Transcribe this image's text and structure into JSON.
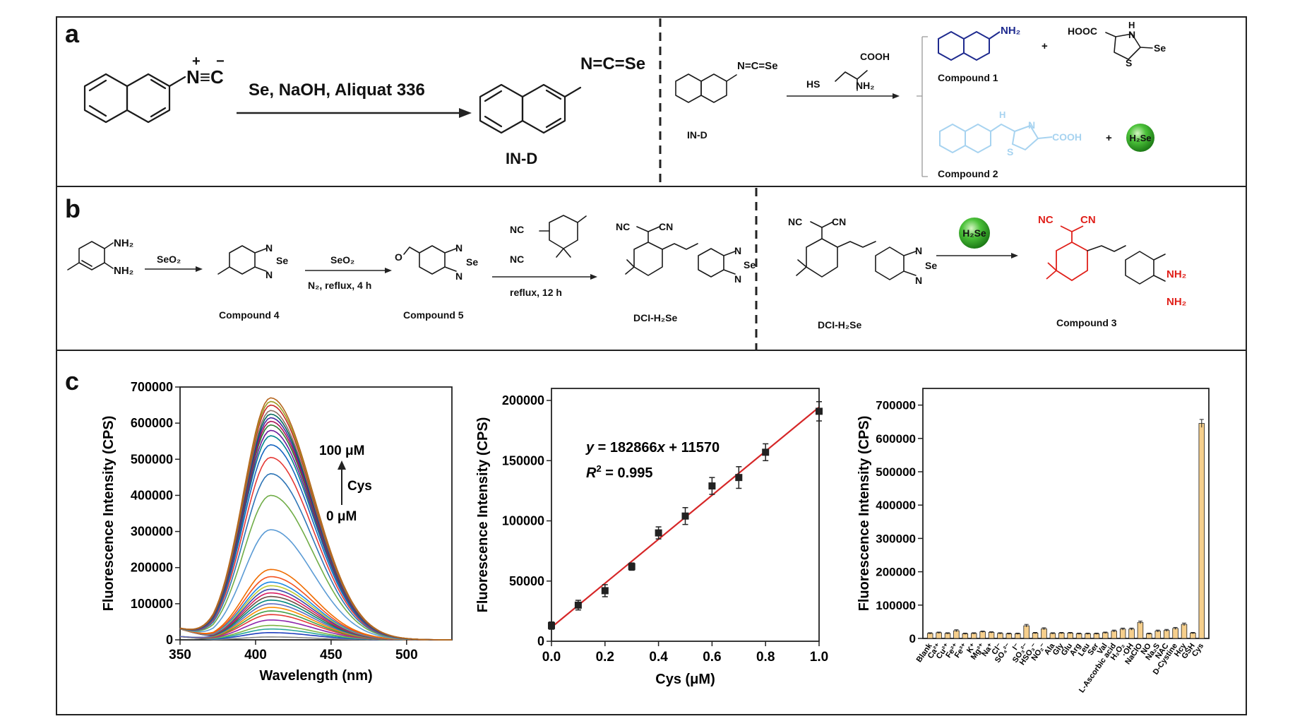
{
  "panels": {
    "a": {
      "letter": "a",
      "charges": {
        "plus": "+",
        "minus": "−"
      },
      "isocyanide": "N≡C",
      "reagents": "Se, NaOH, Aliquat 336",
      "product_atoms": "N=C=Se",
      "product_label": "IN-D",
      "reaction_left": {
        "atoms": "N=C=Se",
        "label": "IN-D"
      },
      "cysteine": {
        "hs": "HS",
        "cooh": "COOH",
        "nh2": "NH₂"
      },
      "compound1": {
        "nh2": "NH₂",
        "label": "Compound 1"
      },
      "byproduct": {
        "hooc": "HOOC",
        "h": "H",
        "n": "N",
        "s": "S",
        "se": "Se"
      },
      "compound2": {
        "h": "H",
        "n": "N",
        "s": "S",
        "cooh": "COOH",
        "label": "Compound 2"
      },
      "plus": "+",
      "h2se": "H₂Se",
      "colors": {
        "compound1": "#1f2b8f",
        "compound2": "#a7d3f0"
      }
    },
    "b": {
      "letter": "b",
      "sm": {
        "nh2_top": "NH₂",
        "nh2_bottom": "NH₂"
      },
      "step1": "SeO₂",
      "compound4": {
        "n": "N",
        "se": "Se",
        "label": "Compound 4"
      },
      "step2": {
        "reagent": "SeO₂",
        "conditions": "N₂, reflux, 4 h"
      },
      "compound5": {
        "o": "O",
        "n": "N",
        "se": "Se",
        "label": "Compound 5"
      },
      "step3": {
        "nc": "NC",
        "conditions": "reflux, 12 h"
      },
      "dci": {
        "nc": "NC",
        "cn": "CN",
        "n": "N",
        "se": "Se",
        "label": "DCI-H₂Se"
      },
      "dci2": {
        "nc": "NC",
        "cn": "CN",
        "n": "N",
        "se": "Se",
        "label": "DCI-H₂Se"
      },
      "h2se": "H₂Se",
      "compound3": {
        "nc": "NC",
        "cn": "CN",
        "nh2_top": "NH₂",
        "nh2_bottom": "NH₂",
        "label": "Compound 3"
      },
      "colors": {
        "compound3": "#e0201a"
      }
    },
    "c": {
      "letter": "c"
    }
  },
  "chart_data": [
    {
      "type": "line",
      "title": "",
      "xlabel": "Wavelength (nm)",
      "ylabel": "Fluorescence Intensity (CPS)",
      "xlim": [
        350,
        530
      ],
      "ylim": [
        0,
        700000
      ],
      "xticks": [
        350,
        400,
        450,
        500
      ],
      "yticks": [
        0,
        100000,
        200000,
        300000,
        400000,
        500000,
        600000,
        700000
      ],
      "peak_wavelength": 410,
      "series_peaks": [
        8000,
        20000,
        30000,
        40000,
        55000,
        70000,
        80000,
        90000,
        100000,
        110000,
        120000,
        130000,
        140000,
        150000,
        160000,
        175000,
        195000,
        305000,
        400000,
        460000,
        505000,
        540000,
        565000,
        580000,
        595000,
        605000,
        615000,
        625000,
        635000,
        650000,
        660000,
        670000
      ],
      "series_colors": [
        "#888888",
        "#1f3fbf",
        "#26a69a",
        "#7cb342",
        "#8e24aa",
        "#e53935",
        "#43a047",
        "#fb8c00",
        "#5c6bc0",
        "#00897b",
        "#6d4c41",
        "#d81b60",
        "#3949ab",
        "#c0ca33",
        "#1e88e5",
        "#f4511e",
        "#ef6c00",
        "#5b9bd5",
        "#70ad47",
        "#2e75b6",
        "#e53935",
        "#1565c0",
        "#00838f",
        "#6a1b9a",
        "#2e7d32",
        "#ad1457",
        "#4527a0",
        "#00695c",
        "#8d6e63",
        "#c62828",
        "#9e9d24",
        "#b5651d"
      ],
      "annotations": {
        "top": "100 μM",
        "arrow_label": "Cys",
        "bottom": "0 μM"
      }
    },
    {
      "type": "scatter",
      "title": "",
      "xlabel": "Cys (μM)",
      "ylabel": "Fluorescence Intensity (CPS)",
      "xlim": [
        0,
        1.0
      ],
      "ylim": [
        0,
        210000
      ],
      "xticks": [
        "0.0",
        "0.2",
        "0.4",
        "0.6",
        "0.8",
        "1.0"
      ],
      "yticks": [
        0,
        50000,
        100000,
        150000,
        200000
      ],
      "x": [
        0.0,
        0.1,
        0.2,
        0.3,
        0.4,
        0.5,
        0.6,
        0.7,
        0.8,
        1.0
      ],
      "y": [
        13000,
        30000,
        42000,
        62000,
        90000,
        104000,
        129000,
        136000,
        157000,
        191000
      ],
      "err": [
        3000,
        4000,
        5000,
        3000,
        5000,
        7000,
        7000,
        9000,
        7000,
        8000
      ],
      "fit": {
        "slope": 182866,
        "intercept": 11570,
        "color": "#d62728"
      },
      "equation_y": "y",
      "equation_eq": " = 182866",
      "equation_x": "x",
      "equation_rest": " + 11570",
      "r2_r": "R",
      "r2_sup": "2",
      "r2_rest": " = 0.995"
    },
    {
      "type": "bar",
      "title": "",
      "xlabel": "",
      "ylabel": "Fluorescence Intensity (CPS)",
      "ylim": [
        0,
        750000
      ],
      "yticks": [
        0,
        100000,
        200000,
        300000,
        400000,
        500000,
        600000,
        700000
      ],
      "categories": [
        "Blank",
        "Ca²⁺",
        "Cu²⁺",
        "Fe²⁺",
        "Fe³⁺",
        "K⁺",
        "Mg²⁺",
        "Na⁺",
        "Cl⁻",
        "SO₄²⁻",
        "I⁻",
        "SO₃²⁻",
        "HSO₃⁻",
        "NO₂⁻",
        "Ala",
        "Gly",
        "Glu",
        "Arg",
        "Leu",
        "Ser",
        "Val",
        "L-Ascorbic acid",
        "H₂O₂",
        "·OH",
        "NaClO",
        "NO",
        "Na₂S",
        "NAC",
        "D-Cystine",
        "Hcy",
        "GSH",
        "Cys"
      ],
      "values": [
        15000,
        17000,
        15000,
        23000,
        14000,
        15000,
        20000,
        18000,
        15000,
        14000,
        14000,
        38000,
        16000,
        29000,
        15000,
        16000,
        16000,
        14000,
        14000,
        14000,
        17000,
        22000,
        28000,
        28000,
        48000,
        14000,
        22000,
        24000,
        30000,
        42000,
        16000,
        645000
      ],
      "err": [
        2000,
        2000,
        2000,
        3000,
        2000,
        2000,
        2000,
        2000,
        2000,
        2000,
        2000,
        4000,
        2000,
        3000,
        2000,
        2000,
        2000,
        2000,
        2000,
        2000,
        2000,
        3000,
        3000,
        3000,
        4000,
        2000,
        3000,
        3000,
        3000,
        4000,
        2000,
        12000
      ],
      "bar_color": "#f6cf8c"
    }
  ]
}
